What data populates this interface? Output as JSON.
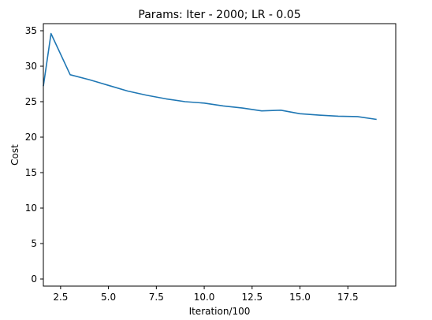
{
  "chart_data": {
    "type": "line",
    "title": "Params: Iter - 2000; LR - 0.05",
    "xlabel": "Iteration/100",
    "ylabel": "Cost",
    "xlim": [
      1.6,
      20.0
    ],
    "ylim": [
      -1.0,
      36.0
    ],
    "xticks": [
      2.5,
      5.0,
      7.5,
      10.0,
      12.5,
      15.0,
      17.5
    ],
    "xtick_labels": [
      "2.5",
      "5.0",
      "7.5",
      "10.0",
      "12.5",
      "15.0",
      "17.5"
    ],
    "yticks": [
      0,
      5,
      10,
      15,
      20,
      25,
      30,
      35
    ],
    "ytick_labels": [
      "0",
      "5",
      "10",
      "15",
      "20",
      "25",
      "30",
      "35"
    ],
    "grid": false,
    "series": [
      {
        "color": "#1f77b4",
        "x": [
          1.6,
          2.0,
          3.0,
          4.0,
          5.0,
          6.0,
          7.0,
          8.0,
          9.0,
          10.0,
          11.0,
          12.0,
          13.0,
          14.0,
          15.0,
          16.0,
          17.0,
          18.0,
          19.0
        ],
        "y": [
          27.2,
          34.6,
          28.8,
          28.1,
          27.3,
          26.5,
          25.9,
          25.4,
          25.0,
          24.8,
          24.4,
          24.1,
          23.7,
          23.8,
          23.3,
          23.1,
          22.95,
          22.9,
          22.5
        ]
      }
    ]
  }
}
